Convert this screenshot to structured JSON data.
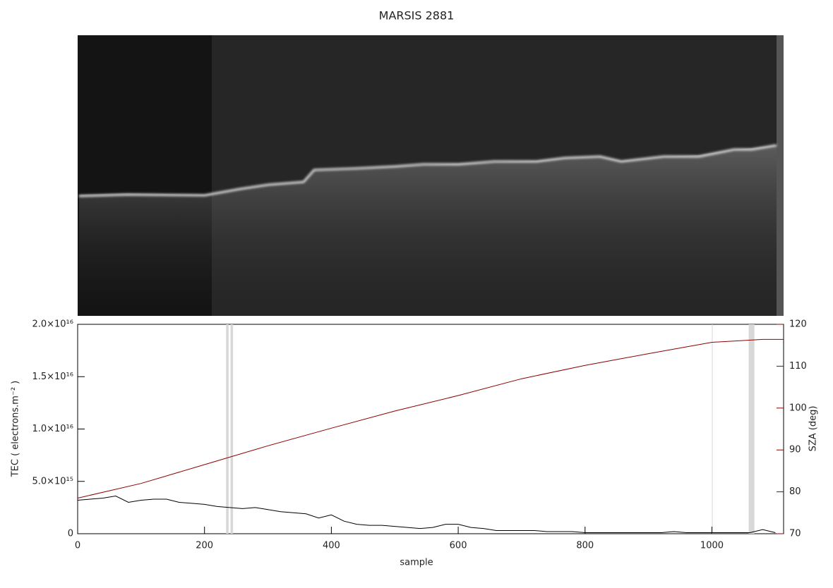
{
  "chart_data": {
    "type": "line",
    "title": "MARSIS 2881",
    "xlabel": "sample",
    "ylabel": "TEC ( electrons.m⁻² )",
    "y2label": "SZA (deg)",
    "xlim": [
      0,
      1113
    ],
    "xticks": [
      0,
      200,
      400,
      600,
      800,
      1000
    ],
    "ylim": [
      0,
      2e+16
    ],
    "yticks": [
      0,
      {
        "value": 5000000000000000.0,
        "label": "5.0×10¹⁵"
      },
      {
        "value": 1e+16,
        "label": "1.0×10¹⁶"
      },
      {
        "value": 1.5e+16,
        "label": "1.5×10¹⁶"
      },
      {
        "value": 2e+16,
        "label": "2.0×10¹⁶"
      }
    ],
    "y2lim": [
      70,
      120
    ],
    "y2ticks": [
      70,
      80,
      90,
      100,
      110,
      120
    ],
    "y2color": "#8b0000",
    "highlight_x": [
      [
        234,
        238
      ],
      [
        241,
        245
      ],
      [
        1000,
        1001
      ],
      [
        1058,
        1067
      ]
    ],
    "series": [
      {
        "color": "#000000",
        "x": [
          0,
          20,
          40,
          60,
          80,
          100,
          120,
          140,
          160,
          180,
          200,
          220,
          240,
          260,
          280,
          300,
          320,
          340,
          360,
          380,
          400,
          420,
          440,
          460,
          480,
          500,
          520,
          540,
          560,
          580,
          600,
          620,
          640,
          660,
          680,
          700,
          720,
          740,
          760,
          780,
          800,
          820,
          840,
          860,
          880,
          900,
          920,
          940,
          960,
          980,
          1000,
          1020,
          1040,
          1060,
          1080,
          1100
        ],
        "values": [
          3200000000000000.0,
          3300000000000000.0,
          3400000000000000.0,
          3600000000000000.0,
          3000000000000000.0,
          3200000000000000.0,
          3300000000000000.0,
          3300000000000000.0,
          3000000000000000.0,
          2900000000000000.0,
          2800000000000000.0,
          2600000000000000.0,
          2500000000000000.0,
          2400000000000000.0,
          2500000000000000.0,
          2300000000000000.0,
          2100000000000000.0,
          2000000000000000.0,
          1900000000000000.0,
          1500000000000000.0,
          1800000000000000.0,
          1200000000000000.0,
          900000000000000.0,
          800000000000000.0,
          800000000000000.0,
          700000000000000.0,
          600000000000000.0,
          500000000000000.0,
          600000000000000.0,
          900000000000000.0,
          900000000000000.0,
          600000000000000.0,
          500000000000000.0,
          300000000000000.0,
          300000000000000.0,
          300000000000000.0,
          300000000000000.0,
          200000000000000.0,
          200000000000000.0,
          200000000000000.0,
          100000000000000.0,
          100000000000000.0,
          100000000000000.0,
          100000000000000.0,
          100000000000000.0,
          100000000000000.0,
          100000000000000.0,
          200000000000000.0,
          100000000000000.0,
          100000000000000.0,
          100000000000000.0,
          100000000000000.0,
          100000000000000.0,
          100000000000000.0,
          400000000000000.0,
          100000000000000.0
        ]
      },
      {
        "color": "#8b0000",
        "axis": "y2",
        "x": [
          0,
          100,
          200,
          300,
          400,
          500,
          600,
          700,
          800,
          900,
          1000,
          1080,
          1113
        ],
        "values": [
          78.5,
          82,
          86.5,
          91,
          95.2,
          99.3,
          103,
          107,
          110.2,
          113,
          115.7,
          116.4,
          116.4
        ]
      }
    ]
  }
}
